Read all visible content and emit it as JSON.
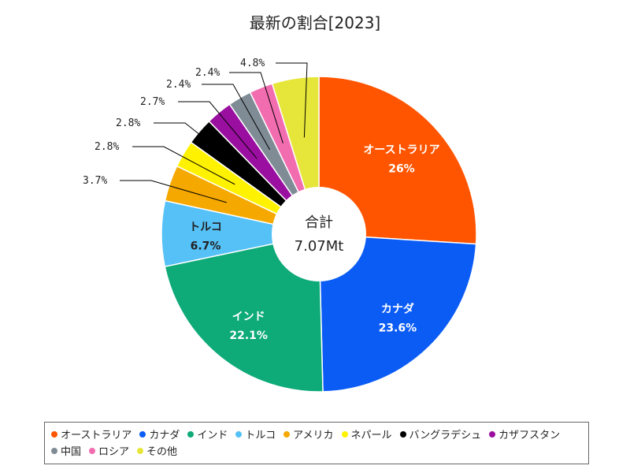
{
  "chart_data": {
    "type": "pie",
    "title": "最新の割合[2023]",
    "center_label": "合計",
    "center_value": "7.07Mt",
    "slices": [
      {
        "name": "オーストラリア",
        "value": 26.0,
        "label": "26%",
        "color": "#ff5500"
      },
      {
        "name": "カナダ",
        "value": 23.6,
        "label": "23.6%",
        "color": "#0b5cf5"
      },
      {
        "name": "インド",
        "value": 22.1,
        "label": "22.1%",
        "color": "#0eaa78"
      },
      {
        "name": "トルコ",
        "value": 6.7,
        "label": "6.7%",
        "color": "#55c1f7"
      },
      {
        "name": "アメリカ",
        "value": 3.7,
        "label": "3.7%",
        "color": "#f5a800"
      },
      {
        "name": "ネパール",
        "value": 2.8,
        "label": "2.8%",
        "color": "#fff200"
      },
      {
        "name": "バングラデシュ",
        "value": 2.8,
        "label": "2.8%",
        "color": "#000000"
      },
      {
        "name": "カザフスタン",
        "value": 2.7,
        "label": "2.7%",
        "color": "#9a0fa0"
      },
      {
        "name": "中国",
        "value": 2.4,
        "label": "2.4%",
        "color": "#7f8c96"
      },
      {
        "name": "ロシア",
        "value": 2.4,
        "label": "2.4%",
        "color": "#f26cb0"
      },
      {
        "name": "その他",
        "value": 4.8,
        "label": "4.8%",
        "color": "#e6e63a"
      }
    ],
    "legend_position": "bottom"
  }
}
